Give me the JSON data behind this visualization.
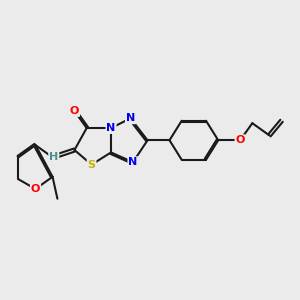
{
  "background_color": "#ebebeb",
  "bond_color": "#1a1a1a",
  "atom_colors": {
    "O": "#ff0000",
    "N": "#0000ee",
    "S": "#c8b400",
    "C": "#1a1a1a",
    "H": "#4a9090"
  },
  "figsize": [
    3.0,
    3.0
  ],
  "dpi": 100
}
